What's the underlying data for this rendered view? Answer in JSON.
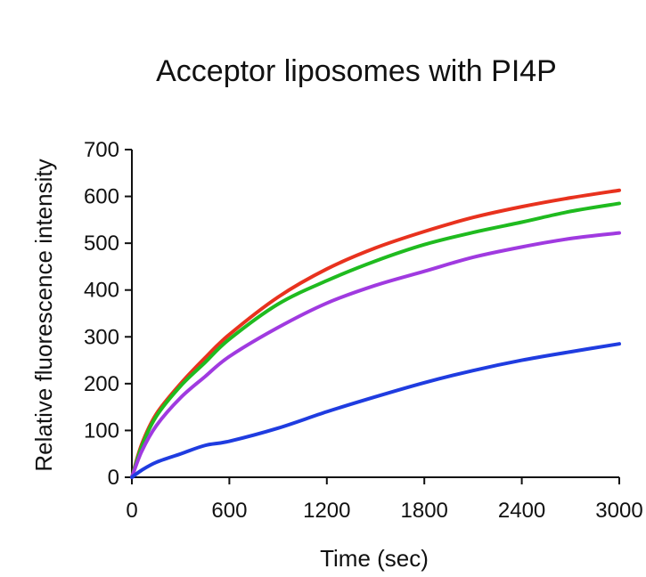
{
  "chart_data": {
    "type": "line",
    "title": "Acceptor liposomes with PI4P",
    "xlabel": "Time (sec)",
    "ylabel": "Relative fluorescence intensity",
    "xlim": [
      0,
      3000
    ],
    "ylim": [
      0,
      700
    ],
    "xticks": [
      0,
      600,
      1200,
      1800,
      2400,
      3000
    ],
    "yticks": [
      0,
      100,
      200,
      300,
      400,
      500,
      600,
      700
    ],
    "grid": false,
    "legend": "none",
    "series": [
      {
        "color": "#e8321e",
        "x": [
          0,
          60,
          150,
          300,
          450,
          600,
          900,
          1200,
          1500,
          1800,
          2100,
          2400,
          2700,
          3000
        ],
        "y": [
          0,
          70,
          135,
          200,
          255,
          305,
          385,
          445,
          490,
          525,
          555,
          578,
          597,
          613
        ]
      },
      {
        "color": "#1fbb1f",
        "x": [
          0,
          60,
          150,
          300,
          450,
          600,
          900,
          1200,
          1500,
          1800,
          2100,
          2400,
          2700,
          3000
        ],
        "y": [
          0,
          65,
          130,
          195,
          245,
          295,
          370,
          420,
          462,
          497,
          523,
          545,
          568,
          585
        ]
      },
      {
        "color": "#a03ae0",
        "x": [
          0,
          60,
          150,
          300,
          450,
          600,
          900,
          1200,
          1500,
          1800,
          2100,
          2400,
          2700,
          3000
        ],
        "y": [
          0,
          55,
          110,
          170,
          215,
          258,
          320,
          372,
          410,
          440,
          470,
          492,
          510,
          522
        ]
      },
      {
        "color": "#1f3ce0",
        "x": [
          0,
          60,
          150,
          300,
          450,
          600,
          900,
          1200,
          1500,
          1800,
          2100,
          2400,
          2700,
          3000
        ],
        "y": [
          0,
          15,
          32,
          50,
          68,
          77,
          105,
          140,
          172,
          202,
          228,
          250,
          268,
          285
        ]
      }
    ]
  }
}
